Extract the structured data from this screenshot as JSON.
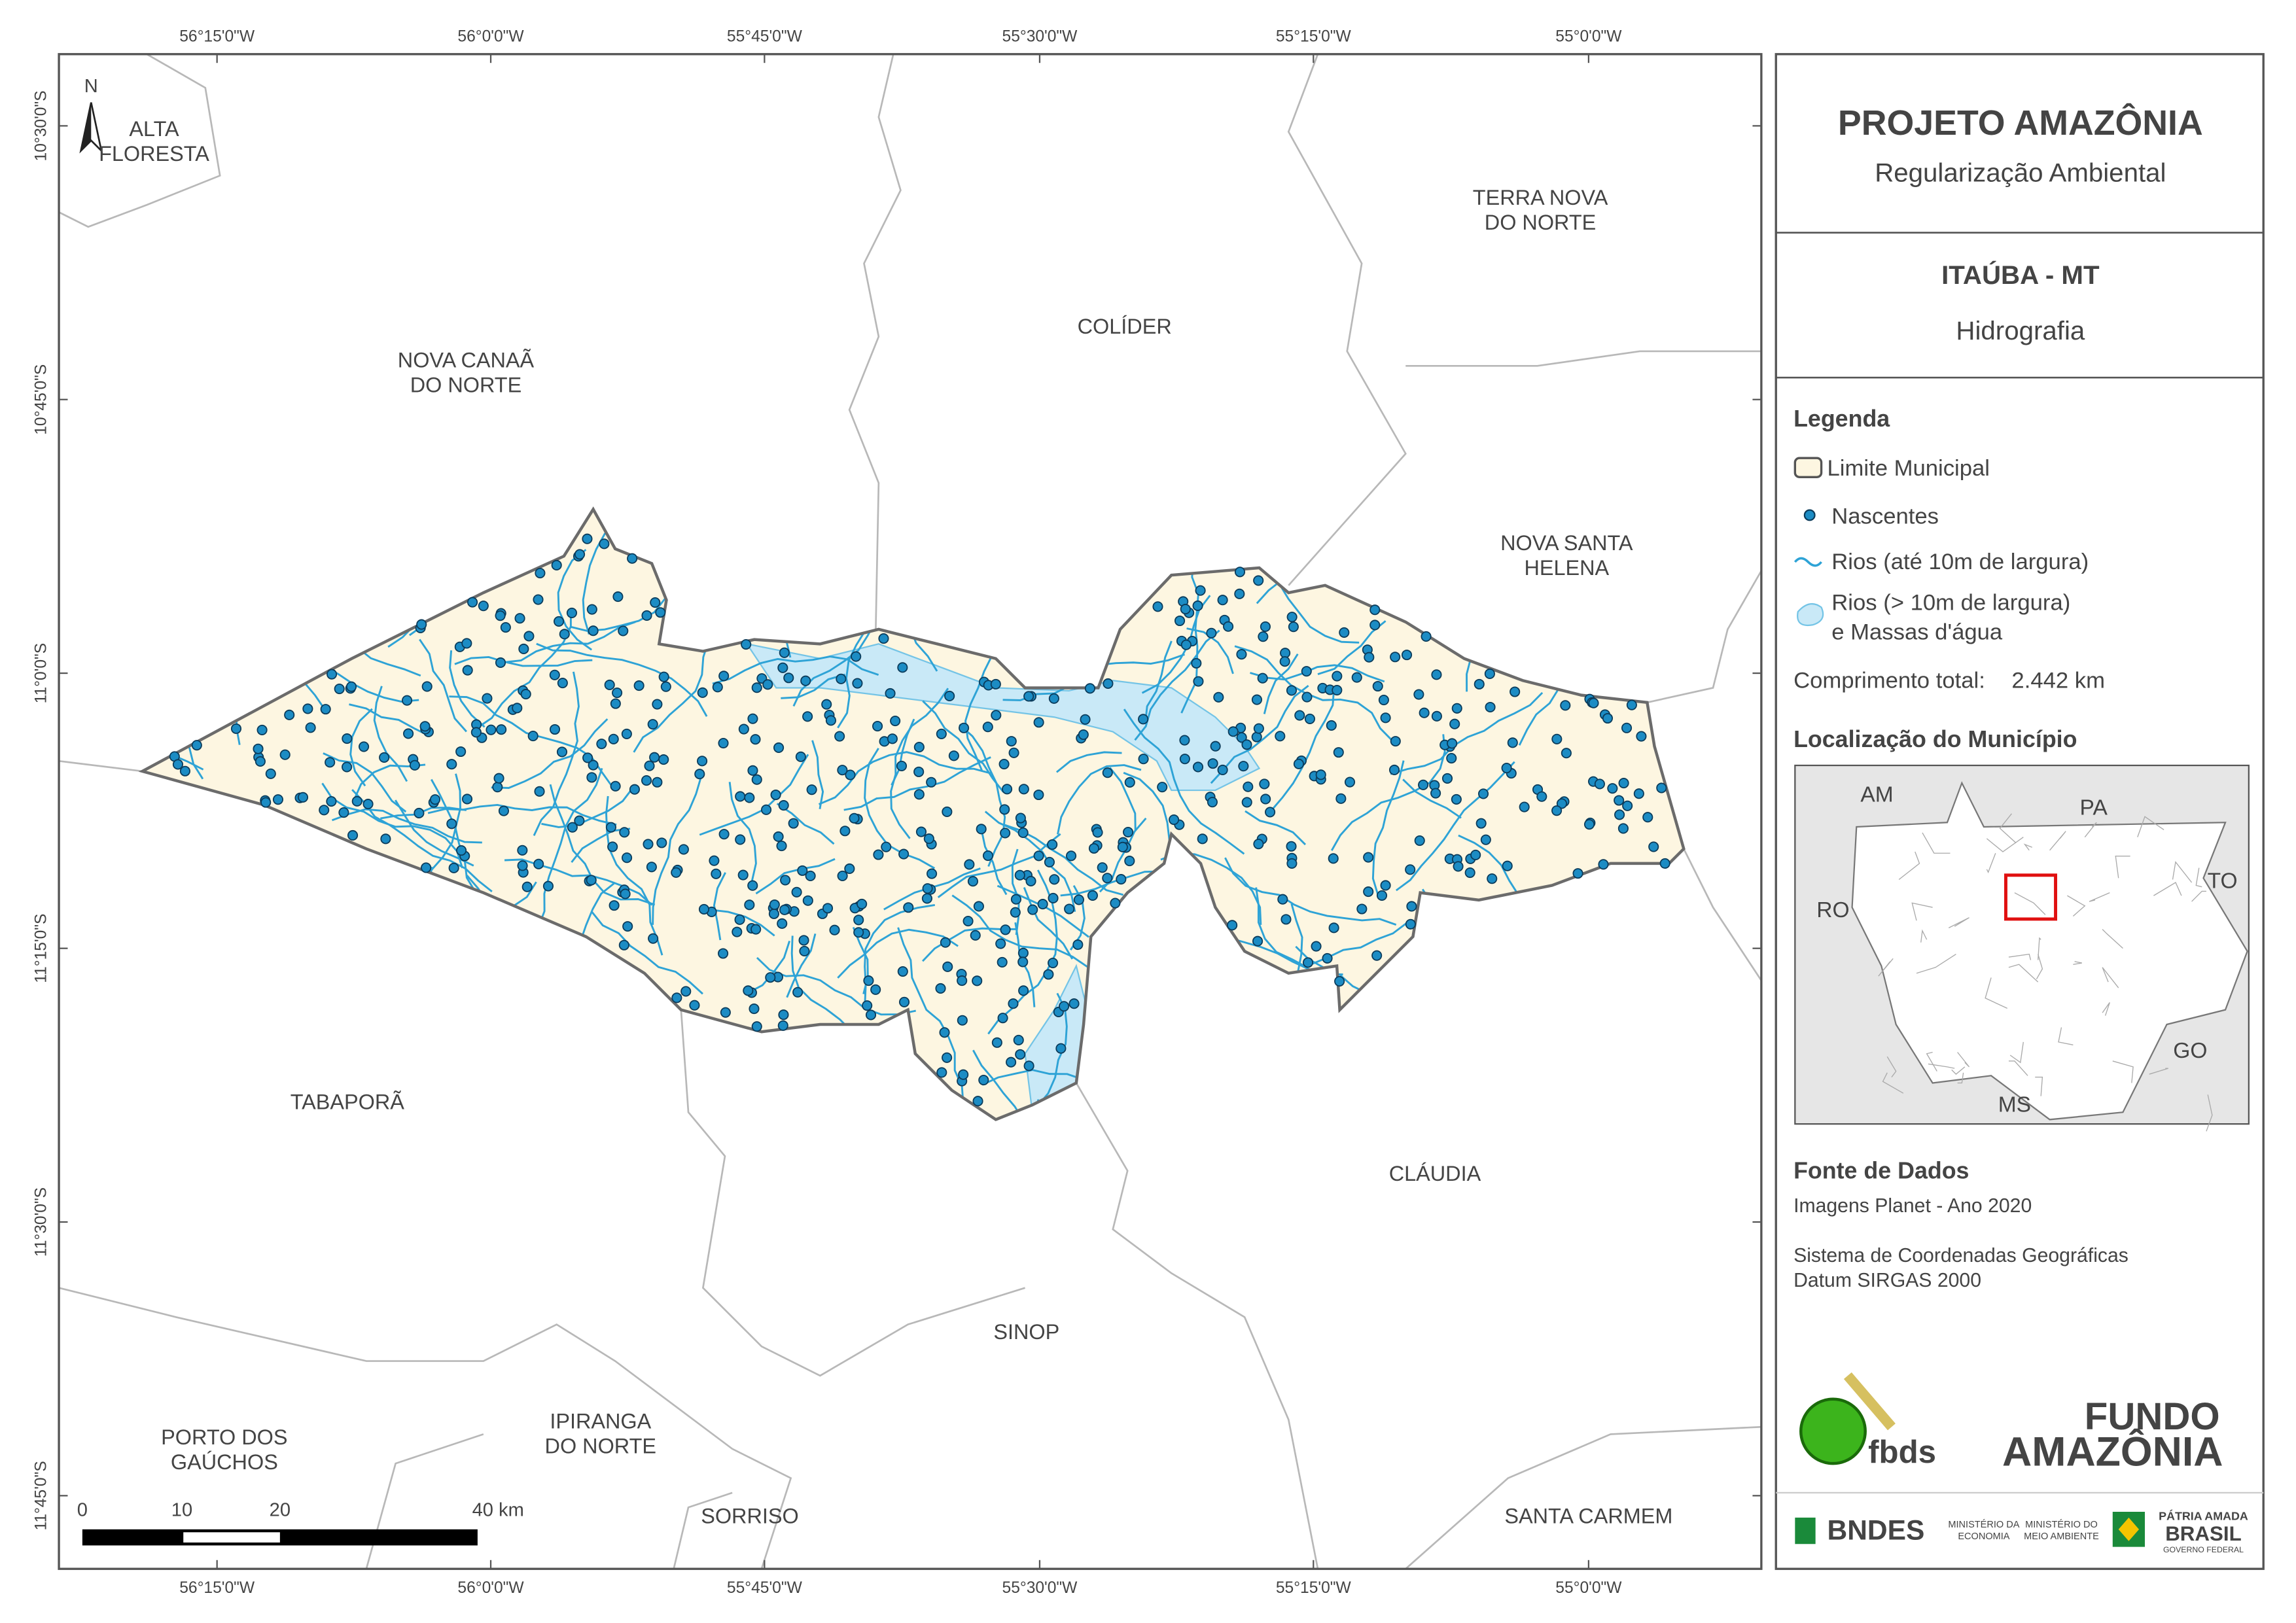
{
  "map": {
    "lon_labels": [
      "56°15'0\"W",
      "56°0'0\"W",
      "55°45'0\"W",
      "55°30'0\"W",
      "55°15'0\"W",
      "55°0'0\"W"
    ],
    "lat_labels": [
      "10°30'0\"S",
      "10°45'0\"S",
      "11°0'0\"S",
      "11°15'0\"S",
      "11°30'0\"S",
      "11°45'0\"S"
    ],
    "north": "N",
    "places": [
      {
        "lines": [
          "ALTA",
          "FLORESTA"
        ]
      },
      {
        "lines": [
          "TERRA NOVA",
          "DO NORTE"
        ]
      },
      {
        "lines": [
          "COLÍDER"
        ]
      },
      {
        "lines": [
          "NOVA CANAÃ",
          "DO NORTE"
        ]
      },
      {
        "lines": [
          "NOVA SANTA",
          "HELENA"
        ]
      },
      {
        "lines": [
          "TABAPORÃ"
        ]
      },
      {
        "lines": [
          "CLÁUDIA"
        ]
      },
      {
        "lines": [
          "SINOP"
        ]
      },
      {
        "lines": [
          "PORTO DOS",
          "GAÚCHOS"
        ]
      },
      {
        "lines": [
          "IPIRANGA",
          "DO NORTE"
        ]
      },
      {
        "lines": [
          "SORRISO"
        ]
      },
      {
        "lines": [
          "SANTA CARMEM"
        ]
      }
    ],
    "scale_labels": [
      "0",
      "10",
      "20",
      "40 km"
    ]
  },
  "panel": {
    "title": "PROJETO AMAZÔNIA",
    "subtitle": "Regularização Ambiental",
    "municipality": "ITAÚBA - MT",
    "theme": "Hidrografia",
    "legend": {
      "title": "Legenda",
      "items": [
        {
          "lines": [
            "Limite Municipal"
          ]
        },
        {
          "lines": [
            "Nascentes"
          ]
        },
        {
          "lines": [
            "Rios (até 10m de largura)"
          ]
        },
        {
          "lines": [
            "Rios (> 10m de largura)",
            "e Massas d'água"
          ]
        }
      ],
      "total_label": "Comprimento total:",
      "total_value": "2.442 km"
    },
    "location": {
      "title": "Localização do Município",
      "states": [
        "AM",
        "PA",
        "RO",
        "TO",
        "GO",
        "MS"
      ]
    },
    "source": {
      "title": "Fonte de Dados",
      "lines": [
        "Imagens Planet - Ano 2020",
        "Sistema de Coordenadas Geográficas",
        "Datum SIRGAS 2000"
      ]
    },
    "logos": {
      "fbds": "fbds",
      "fundo": [
        "FUNDO",
        "AMAZÔNIA"
      ],
      "bndes": "BNDES",
      "min1": [
        "MINISTÉRIO DA",
        "ECONOMIA"
      ],
      "min2": [
        "MINISTÉRIO DO",
        "MEIO AMBIENTE"
      ],
      "brasil": [
        "PÁTRIA AMADA",
        "BRASIL",
        "GOVERNO FEDERAL"
      ]
    }
  }
}
